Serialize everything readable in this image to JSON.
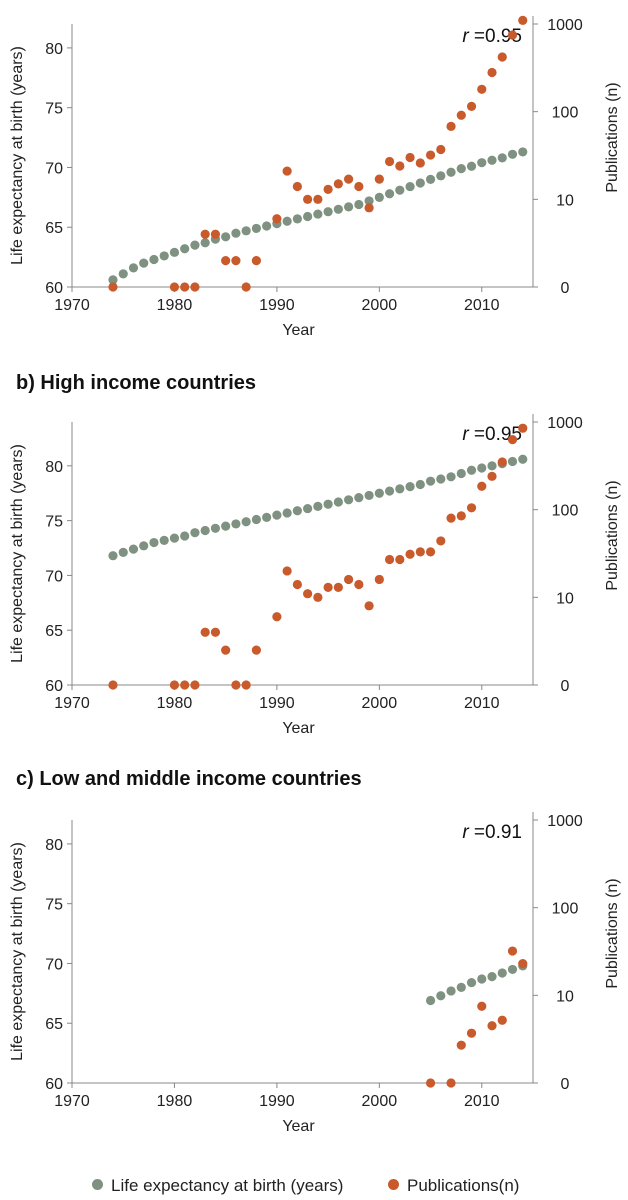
{
  "panels": [
    {
      "title": "",
      "r_label": "r",
      "r_value": "=0.95"
    },
    {
      "title": "b) High income countries",
      "r_label": "r",
      "r_value": "=0.95"
    },
    {
      "title": "c) Low and middle income countries",
      "r_label": "r",
      "r_value": "=0.91"
    }
  ],
  "legend": {
    "life": "Life expectancy at birth (years)",
    "pubs": "Publications(n)"
  },
  "colors": {
    "life": "#7f9180",
    "pubs": "#c85a2b"
  },
  "chart_data": [
    {
      "type": "scatter",
      "title": "",
      "xlabel": "Year",
      "ylabel": "Life expectancy at birth (years)",
      "y2label": "Publications (n)",
      "xlim": [
        1970,
        2015
      ],
      "xticks": [
        1970,
        1980,
        1990,
        2000,
        2010
      ],
      "ylim": [
        60,
        82
      ],
      "yticks": [
        60,
        65,
        70,
        75,
        80
      ],
      "y2_scale": "log",
      "y2ticks": [
        "0",
        "10",
        "100",
        "1000"
      ],
      "series": [
        {
          "name": "Life expectancy at birth (years)",
          "axis": "left",
          "x": [
            1974,
            1975,
            1976,
            1977,
            1978,
            1979,
            1980,
            1981,
            1982,
            1983,
            1984,
            1985,
            1986,
            1987,
            1988,
            1989,
            1990,
            1991,
            1992,
            1993,
            1994,
            1995,
            1996,
            1997,
            1998,
            1999,
            2000,
            2001,
            2002,
            2003,
            2004,
            2005,
            2006,
            2007,
            2008,
            2009,
            2010,
            2011,
            2012,
            2013,
            2014
          ],
          "y": [
            60.6,
            61.1,
            61.6,
            62.0,
            62.3,
            62.6,
            62.9,
            63.2,
            63.5,
            63.7,
            64.0,
            64.2,
            64.5,
            64.7,
            64.9,
            65.1,
            65.3,
            65.5,
            65.7,
            65.9,
            66.1,
            66.3,
            66.5,
            66.7,
            66.9,
            67.2,
            67.5,
            67.8,
            68.1,
            68.4,
            68.7,
            69.0,
            69.3,
            69.6,
            69.9,
            70.1,
            70.4,
            70.6,
            70.8,
            71.1,
            71.3
          ]
        },
        {
          "name": "Publications(n)",
          "axis": "right",
          "x": [
            1974,
            1980,
            1981,
            1982,
            1983,
            1984,
            1985,
            1986,
            1987,
            1988,
            1990,
            1991,
            1992,
            1993,
            1994,
            1995,
            1996,
            1997,
            1998,
            1999,
            2000,
            2001,
            2002,
            2003,
            2004,
            2005,
            2006,
            2007,
            2008,
            2009,
            2010,
            2011,
            2012,
            2013,
            2014
          ],
          "y": [
            1,
            1,
            1,
            1,
            4,
            4,
            2,
            2,
            1,
            2,
            6,
            21,
            14,
            10,
            10,
            13,
            15,
            17,
            14,
            8,
            17,
            27,
            24,
            30,
            26,
            32,
            37,
            68,
            91,
            115,
            180,
            280,
            420,
            750,
            1100
          ]
        }
      ]
    },
    {
      "type": "scatter",
      "title": "b) High income countries",
      "xlabel": "Year",
      "ylabel": "Life expectancy at birth (years)",
      "y2label": "Publications (n)",
      "xlim": [
        1970,
        2015
      ],
      "xticks": [
        1970,
        1980,
        1990,
        2000,
        2010
      ],
      "ylim": [
        60,
        84
      ],
      "yticks": [
        60,
        65,
        70,
        75,
        80
      ],
      "y2_scale": "log",
      "y2ticks": [
        "0",
        "10",
        "100",
        "1000"
      ],
      "series": [
        {
          "name": "Life expectancy at birth (years)",
          "axis": "left",
          "x": [
            1974,
            1975,
            1976,
            1977,
            1978,
            1979,
            1980,
            1981,
            1982,
            1983,
            1984,
            1985,
            1986,
            1987,
            1988,
            1989,
            1990,
            1991,
            1992,
            1993,
            1994,
            1995,
            1996,
            1997,
            1998,
            1999,
            2000,
            2001,
            2002,
            2003,
            2004,
            2005,
            2006,
            2007,
            2008,
            2009,
            2010,
            2011,
            2012,
            2013,
            2014
          ],
          "y": [
            71.8,
            72.1,
            72.4,
            72.7,
            73.0,
            73.2,
            73.4,
            73.6,
            73.9,
            74.1,
            74.3,
            74.5,
            74.7,
            74.9,
            75.1,
            75.3,
            75.5,
            75.7,
            75.9,
            76.1,
            76.3,
            76.5,
            76.7,
            76.9,
            77.1,
            77.3,
            77.5,
            77.7,
            77.9,
            78.1,
            78.3,
            78.6,
            78.8,
            79.0,
            79.3,
            79.6,
            79.8,
            80.0,
            80.2,
            80.4,
            80.6
          ]
        },
        {
          "name": "Publications(n)",
          "axis": "right",
          "x": [
            1974,
            1980,
            1981,
            1982,
            1983,
            1984,
            1985,
            1986,
            1987,
            1988,
            1990,
            1991,
            1992,
            1993,
            1994,
            1995,
            1996,
            1997,
            1998,
            1999,
            2000,
            2001,
            2002,
            2003,
            2004,
            2005,
            2006,
            2007,
            2008,
            2009,
            2010,
            2011,
            2012,
            2013,
            2014
          ],
          "y": [
            1,
            1,
            1,
            1,
            4,
            4,
            2.5,
            1,
            1,
            2.5,
            6,
            20,
            14,
            11,
            10,
            13,
            13,
            16,
            14,
            8,
            16,
            27,
            27,
            31,
            33,
            33,
            44,
            80,
            85,
            105,
            185,
            240,
            350,
            630,
            850
          ]
        }
      ]
    },
    {
      "type": "scatter",
      "title": "c) Low and middle income countries",
      "xlabel": "Year",
      "ylabel": "Life expectancy at birth (years)",
      "y2label": "Publications (n)",
      "xlim": [
        1970,
        2015
      ],
      "xticks": [
        1970,
        1980,
        1990,
        2000,
        2010
      ],
      "ylim": [
        60,
        82
      ],
      "yticks": [
        60,
        65,
        70,
        75,
        80
      ],
      "y2_scale": "log",
      "y2ticks": [
        "0",
        "10",
        "100",
        "1000"
      ],
      "series": [
        {
          "name": "Life expectancy at birth (years)",
          "axis": "left",
          "x": [
            2005,
            2006,
            2007,
            2008,
            2009,
            2010,
            2011,
            2012,
            2013,
            2014
          ],
          "y": [
            66.9,
            67.3,
            67.7,
            68.0,
            68.4,
            68.7,
            68.9,
            69.2,
            69.5,
            69.8
          ]
        },
        {
          "name": "Publications(n)",
          "axis": "right",
          "x": [
            2005,
            2007,
            2008,
            2009,
            2010,
            2011,
            2012,
            2013,
            2014
          ],
          "y": [
            1,
            1,
            2.7,
            3.7,
            7.5,
            4.5,
            5.2,
            32,
            23
          ]
        }
      ]
    }
  ]
}
